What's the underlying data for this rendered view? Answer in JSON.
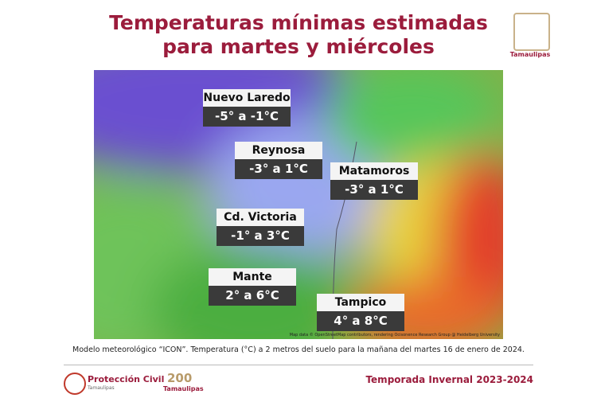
{
  "header": {
    "title_lines": [
      "Temperaturas mínimas estimadas",
      "para martes y miércoles"
    ],
    "logo_text": "Tamaulipas"
  },
  "map": {
    "labels": [
      {
        "city": "Nuevo Laredo",
        "range": "-5° a -1°C"
      },
      {
        "city": "Reynosa",
        "range": "-3° a 1°C"
      },
      {
        "city": "Matamoros",
        "range": "-3° a 1°C"
      },
      {
        "city": "Cd. Victoria",
        "range": "-1° a 3°C"
      },
      {
        "city": "Mante",
        "range": "2° a 6°C"
      },
      {
        "city": "Tampico",
        "range": "4° a 8°C"
      }
    ],
    "attribution": "Map data © OpenStreetMap contributors, rendering Ocisonence Research Group @ Heidelberg University"
  },
  "caption": "Modelo meteorológico “ICON”. Temperatura (°C) a 2 metros del suelo para la mañana del martes 16 de enero de 2024.",
  "footer": {
    "left": "Protección Civil",
    "left_sub": "Tamaulipas",
    "center": "Tamaulipas",
    "right": "Temporada Invernal 2023-2024"
  }
}
